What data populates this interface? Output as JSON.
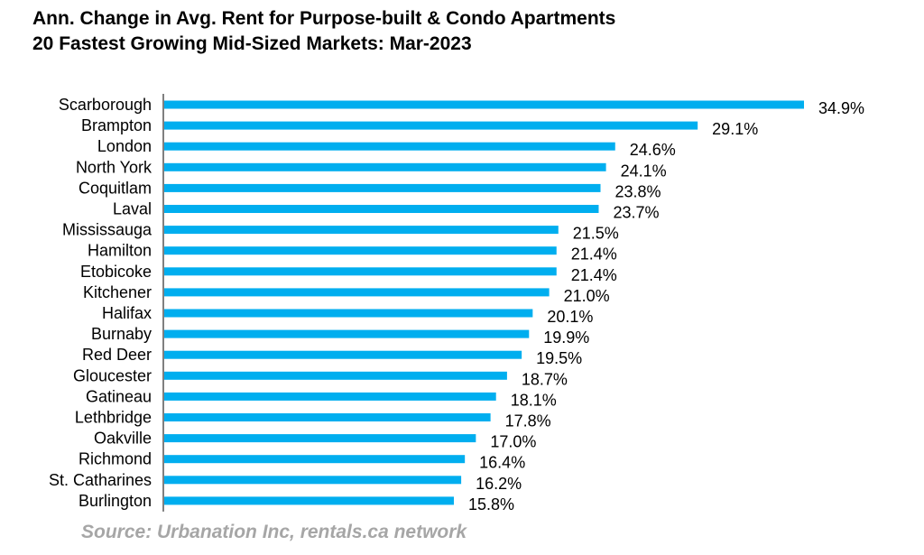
{
  "title_line1": "Ann. Change in Avg. Rent for Purpose-built & Condo Apartments",
  "title_line2": "20 Fastest Growing Mid-Sized Markets: Mar-2023",
  "source": "Source: Urbanation Inc, rentals.ca network",
  "colors": {
    "bar": "#00AEEF",
    "axis": "#000000",
    "source": "#A6A6A6"
  },
  "chart_data": {
    "type": "bar",
    "orientation": "horizontal",
    "categories": [
      "Scarborough",
      "Brampton",
      "London",
      "North York",
      "Coquitlam",
      "Laval",
      "Mississauga",
      "Hamilton",
      "Etobicoke",
      "Kitchener",
      "Halifax",
      "Burnaby",
      "Red Deer",
      "Gloucester",
      "Gatineau",
      "Lethbridge",
      "Oakville",
      "Richmond",
      "St. Catharines",
      "Burlington"
    ],
    "values": [
      34.9,
      29.1,
      24.6,
      24.1,
      23.8,
      23.7,
      21.5,
      21.4,
      21.4,
      21.0,
      20.1,
      19.9,
      19.5,
      18.7,
      18.1,
      17.8,
      17.0,
      16.4,
      16.2,
      15.8
    ],
    "data_labels": [
      "34.9%",
      "29.1%",
      "24.6%",
      "24.1%",
      "23.8%",
      "23.7%",
      "21.5%",
      "21.4%",
      "21.4%",
      "21.0%",
      "20.1%",
      "19.9%",
      "19.5%",
      "18.7%",
      "18.1%",
      "17.8%",
      "17.0%",
      "16.4%",
      "16.2%",
      "15.8%"
    ],
    "xlim": [
      0,
      34.9
    ],
    "grid": false,
    "legend": "none"
  }
}
